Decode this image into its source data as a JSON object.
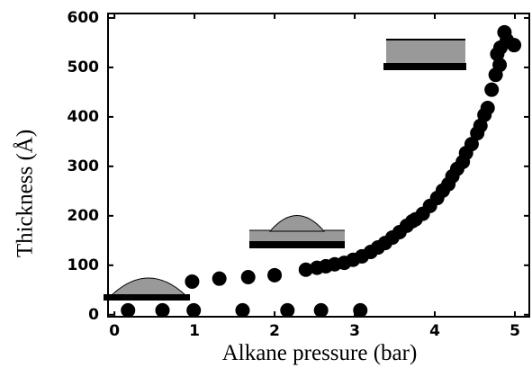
{
  "chart_data": {
    "type": "scatter",
    "x_label": "Alkane pressure (bar)",
    "y_label": "Thickness (Å)",
    "x": [
      0.17,
      0.6,
      0.99,
      1.6,
      2.16,
      2.58,
      3.07,
      0.97,
      1.31,
      1.67,
      2.0,
      2.39,
      2.53,
      2.64,
      2.75,
      2.87,
      2.98,
      3.09,
      3.2,
      3.29,
      3.38,
      3.47,
      3.56,
      3.65,
      3.72,
      3.76,
      3.85,
      3.94,
      4.03,
      4.1,
      4.17,
      4.22,
      4.28,
      4.35,
      4.39,
      4.46,
      4.53,
      4.57,
      4.62,
      4.66,
      4.71,
      4.76,
      4.78,
      4.81,
      4.82,
      4.87,
      4.9,
      4.99
    ],
    "values": [
      9,
      9,
      9,
      9,
      9,
      9,
      9,
      67,
      73,
      76,
      80,
      91,
      95,
      98,
      102,
      105,
      111,
      118,
      127,
      136,
      145,
      156,
      167,
      180,
      189,
      193,
      204,
      220,
      236,
      251,
      264,
      280,
      295,
      309,
      327,
      345,
      367,
      382,
      404,
      418,
      455,
      485,
      527,
      505,
      540,
      571,
      555,
      545
    ],
    "color": "#000000",
    "xlim": [
      -0.08,
      5.18
    ],
    "ylim": [
      -4,
      609
    ],
    "xticks": [
      0,
      1,
      2,
      3,
      4,
      5
    ],
    "yticks": [
      0,
      100,
      200,
      300,
      400,
      500,
      600
    ]
  }
}
